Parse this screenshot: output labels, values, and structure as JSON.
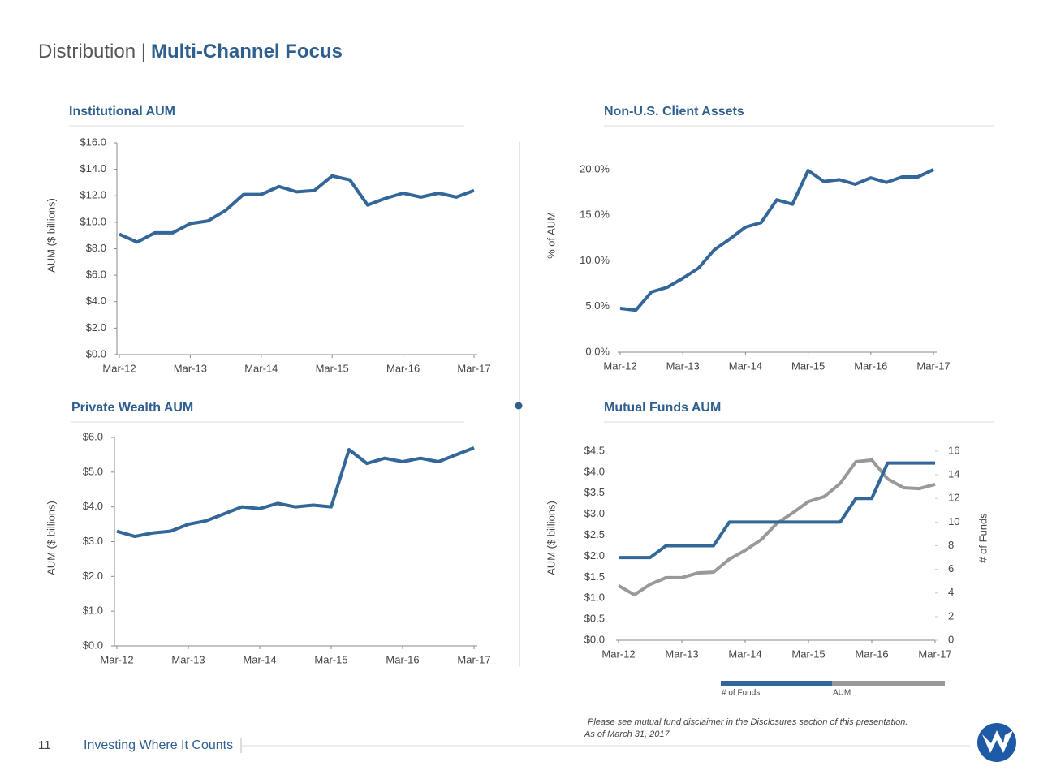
{
  "header": {
    "title_prefix": "Distribution |",
    "title": "Multi-Channel Focus"
  },
  "chart_data": [
    {
      "type": "line",
      "title": "Institutional AUM",
      "ylabel": "AUM ($ billions)",
      "categories": [
        "Mar-12",
        null,
        null,
        null,
        "Mar-13",
        null,
        null,
        null,
        "Mar-14",
        null,
        null,
        null,
        "Mar-15",
        null,
        null,
        null,
        "Mar-16",
        null,
        null,
        null,
        "Mar-17"
      ],
      "values": [
        9.1,
        8.5,
        9.2,
        9.2,
        9.9,
        10.1,
        10.9,
        12.1,
        12.1,
        12.7,
        12.3,
        12.4,
        13.5,
        13.2,
        11.3,
        11.8,
        12.2,
        11.9,
        12.2,
        11.9,
        12.4
      ],
      "color": "#336699",
      "ylim": [
        0,
        16
      ],
      "yticks": [
        {
          "value": 0,
          "label": "$0.0"
        },
        {
          "value": 2,
          "label": "$2.0"
        },
        {
          "value": 4,
          "label": "$4.0"
        },
        {
          "value": 6,
          "label": "$6.0"
        },
        {
          "value": 8,
          "label": "$8.0"
        },
        {
          "value": 10,
          "label": "$10.0"
        },
        {
          "value": 12,
          "label": "$12.0"
        },
        {
          "value": 14,
          "label": "$14.0"
        },
        {
          "value": 16,
          "label": "$16.0"
        }
      ]
    },
    {
      "type": "line",
      "title": "Non-U.S. Client Assets",
      "ylabel": "% of AUM",
      "categories": [
        "Mar-12",
        null,
        null,
        null,
        "Mar-13",
        null,
        null,
        null,
        "Mar-14",
        null,
        null,
        null,
        "Mar-15",
        null,
        null,
        null,
        "Mar-16",
        null,
        null,
        null,
        "Mar-17"
      ],
      "values": [
        4.8,
        4.6,
        6.6,
        7.1,
        8.1,
        9.2,
        11.2,
        12.4,
        13.7,
        14.2,
        16.7,
        16.2,
        19.9,
        18.7,
        18.9,
        18.4,
        19.1,
        18.6,
        19.2,
        19.2,
        20.0
      ],
      "color": "#336699",
      "ylim": [
        0,
        20
      ],
      "yticks": [
        {
          "value": 0,
          "label": "0.0%"
        },
        {
          "value": 5,
          "label": "5.0%"
        },
        {
          "value": 10,
          "label": "10.0%"
        },
        {
          "value": 15,
          "label": "15.0%"
        },
        {
          "value": 20,
          "label": "20.0%"
        }
      ]
    },
    {
      "type": "line",
      "title": "Private Wealth AUM",
      "ylabel": "AUM ($ billions)",
      "categories": [
        "Mar-12",
        null,
        null,
        null,
        "Mar-13",
        null,
        null,
        null,
        "Mar-14",
        null,
        null,
        null,
        "Mar-15",
        null,
        null,
        null,
        "Mar-16",
        null,
        null,
        null,
        "Mar-17"
      ],
      "values": [
        3.3,
        3.15,
        3.25,
        3.3,
        3.5,
        3.6,
        3.8,
        4.0,
        3.95,
        4.1,
        4.0,
        4.05,
        4.0,
        5.65,
        5.25,
        5.4,
        5.3,
        5.4,
        5.3,
        5.5,
        5.7
      ],
      "color": "#336699",
      "ylim": [
        0,
        6
      ],
      "yticks": [
        {
          "value": 0,
          "label": "$0.0"
        },
        {
          "value": 1,
          "label": "$1.0"
        },
        {
          "value": 2,
          "label": "$2.0"
        },
        {
          "value": 3,
          "label": "$3.0"
        },
        {
          "value": 4,
          "label": "$4.0"
        },
        {
          "value": 5,
          "label": "$5.0"
        },
        {
          "value": 6,
          "label": "$6.0"
        }
      ]
    },
    {
      "type": "line",
      "title": "Mutual Funds AUM",
      "ylabel": "AUM ($ billions)",
      "y2label": "# of Funds",
      "categories": [
        "Mar-12",
        null,
        null,
        null,
        "Mar-13",
        null,
        null,
        null,
        "Mar-14",
        null,
        null,
        null,
        "Mar-15",
        null,
        null,
        null,
        "Mar-16",
        null,
        null,
        null,
        "Mar-17"
      ],
      "series": [
        {
          "name": "# of Funds",
          "color": "#336699",
          "axis": "y2",
          "values": [
            7,
            7,
            7,
            8,
            8,
            8,
            8,
            10,
            10,
            10,
            10,
            10,
            10,
            10,
            10,
            12,
            12,
            15,
            15,
            15,
            15
          ]
        },
        {
          "name": "AUM",
          "color": "#999999",
          "values": [
            1.3,
            1.08,
            1.33,
            1.49,
            1.49,
            1.6,
            1.62,
            1.93,
            2.14,
            2.39,
            2.78,
            3.03,
            3.3,
            3.42,
            3.73,
            4.25,
            4.29,
            3.84,
            3.63,
            3.61,
            3.71
          ]
        }
      ],
      "ylim": [
        0,
        4.5
      ],
      "yticks": [
        {
          "value": 0,
          "label": "$0.0"
        },
        {
          "value": 0.5,
          "label": "$0.5"
        },
        {
          "value": 1,
          "label": "$1.0"
        },
        {
          "value": 1.5,
          "label": "$1.5"
        },
        {
          "value": 2,
          "label": "$2.0"
        },
        {
          "value": 2.5,
          "label": "$2.5"
        },
        {
          "value": 3,
          "label": "$3.0"
        },
        {
          "value": 3.5,
          "label": "$3.5"
        },
        {
          "value": 4,
          "label": "$4.0"
        },
        {
          "value": 4.5,
          "label": "$4.5"
        }
      ],
      "y2lim": [
        0,
        16
      ],
      "y2ticks": [
        0,
        2,
        4,
        6,
        8,
        10,
        12,
        14,
        16
      ]
    }
  ],
  "footer": {
    "page": "11",
    "tagline": "Investing Where It Counts",
    "notes": [
      "Please see mutual fund disclaimer in the Disclosures section of this presentation.",
      "As of March 31, 2017"
    ]
  }
}
